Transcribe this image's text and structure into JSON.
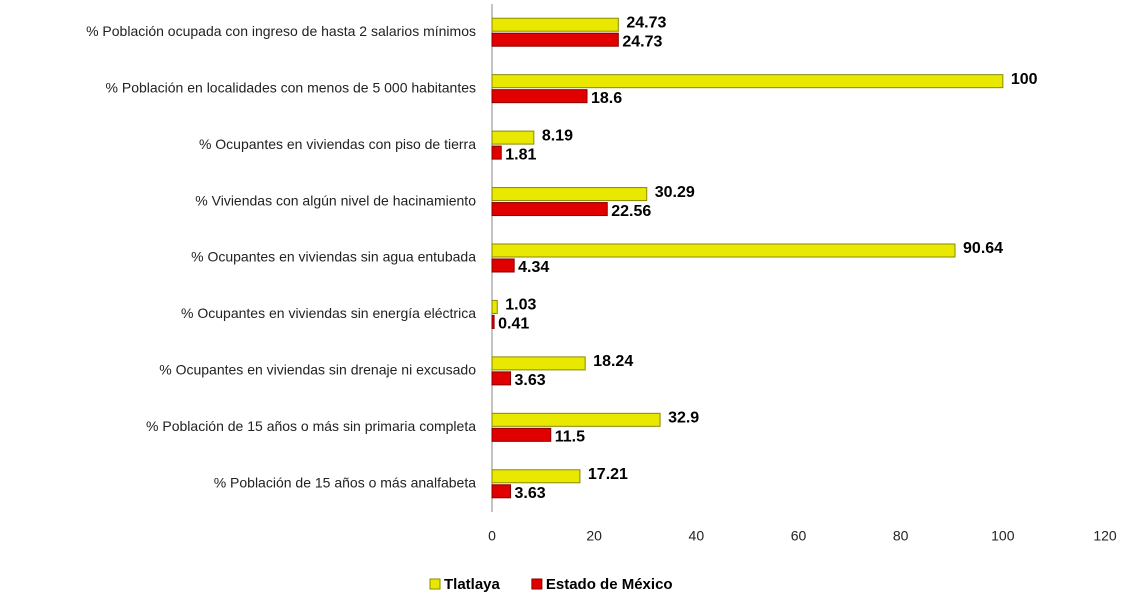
{
  "chart_data": {
    "type": "hbar",
    "categories": [
      "% Población ocupada con ingreso de hasta 2 salarios mínimos",
      "% Población en localidades con menos de 5 000 habitantes",
      "% Ocupantes en viviendas con piso de tierra",
      "% Viviendas con algún nivel de hacinamiento",
      "% Ocupantes en viviendas sin agua entubada",
      "% Ocupantes en viviendas sin energía eléctrica",
      "% Ocupantes en viviendas sin drenaje ni excusado",
      "% Población de 15 años o más sin primaria completa",
      "% Población de 15 años o más analfabeta"
    ],
    "series": [
      {
        "name": "Tlatlaya",
        "color": "#e8e800",
        "values": [
          24.73,
          100,
          8.19,
          30.29,
          90.64,
          1.03,
          18.24,
          32.9,
          17.21
        ]
      },
      {
        "name": "Estado de México",
        "color": "#e00000",
        "values": [
          24.73,
          18.6,
          1.81,
          22.56,
          4.34,
          0.41,
          3.63,
          11.5,
          3.63
        ]
      }
    ],
    "xlim": [
      0,
      120
    ],
    "xticks": [
      0,
      20,
      40,
      60,
      80,
      100,
      120
    ],
    "legend": "bottom"
  }
}
